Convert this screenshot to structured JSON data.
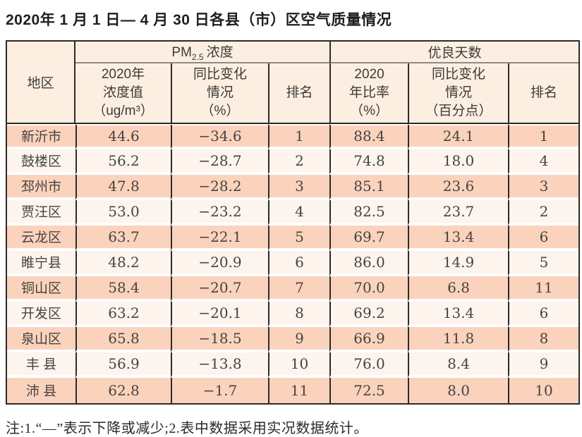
{
  "page": {
    "title": "2020年 1 月 1 日— 4 月 30 日各县（市）区空气质量情况",
    "note": "注:1.“—”表示下降或减少;2.表中数据采用实况数据统计。"
  },
  "colors": {
    "row_salmon": "#fbd3bd",
    "row_light": "#fdf4ee",
    "header_bg": "#fcefe2",
    "border_dark": "#2e2a28",
    "border_gray": "#8f8a86"
  },
  "chart_data": {
    "type": "table",
    "title": "2020年 1 月 1 日— 4 月 30 日各县（市）区空气质量情况",
    "column_groups": {
      "pm": {
        "prefix": "PM",
        "subscript": "2.5",
        "suffix": "浓度"
      },
      "days": "优良天数"
    },
    "columns": {
      "region": "地区",
      "pm_value": "2020年\n浓度值\n（ug/m³）",
      "pm_change": "同比变化\n情况\n（%）",
      "pm_rank": "排名",
      "days_rate": "2020\n年比率\n（%）",
      "days_change": "同比变化\n情况\n（百分点）",
      "days_rank": "排名"
    },
    "rows": [
      {
        "region": "新沂市",
        "pm_value": "44.6",
        "pm_change": "−34.6",
        "pm_rank": "1",
        "days_rate": "88.4",
        "days_change": "24.1",
        "days_rank": "1"
      },
      {
        "region": "鼓楼区",
        "pm_value": "56.2",
        "pm_change": "−28.7",
        "pm_rank": "2",
        "days_rate": "74.8",
        "days_change": "18.0",
        "days_rank": "4"
      },
      {
        "region": "邳州市",
        "pm_value": "47.8",
        "pm_change": "−28.2",
        "pm_rank": "3",
        "days_rate": "85.1",
        "days_change": "23.6",
        "days_rank": "3"
      },
      {
        "region": "贾汪区",
        "pm_value": "53.0",
        "pm_change": "−23.2",
        "pm_rank": "4",
        "days_rate": "82.5",
        "days_change": "23.7",
        "days_rank": "2"
      },
      {
        "region": "云龙区",
        "pm_value": "63.7",
        "pm_change": "−22.1",
        "pm_rank": "5",
        "days_rate": "69.7",
        "days_change": "13.4",
        "days_rank": "6"
      },
      {
        "region": "睢宁县",
        "pm_value": "48.2",
        "pm_change": "−20.9",
        "pm_rank": "6",
        "days_rate": "86.0",
        "days_change": "14.9",
        "days_rank": "5"
      },
      {
        "region": "铜山区",
        "pm_value": "58.4",
        "pm_change": "−20.7",
        "pm_rank": "7",
        "days_rate": "70.0",
        "days_change": "6.8",
        "days_rank": "11"
      },
      {
        "region": "开发区",
        "pm_value": "63.2",
        "pm_change": "−20.1",
        "pm_rank": "8",
        "days_rate": "69.2",
        "days_change": "13.4",
        "days_rank": "6"
      },
      {
        "region": "泉山区",
        "pm_value": "65.8",
        "pm_change": "−18.5",
        "pm_rank": "9",
        "days_rate": "66.9",
        "days_change": "11.8",
        "days_rank": "8"
      },
      {
        "region": "丰 县",
        "pm_value": "56.9",
        "pm_change": "−13.8",
        "pm_rank": "10",
        "days_rate": "76.0",
        "days_change": "8.4",
        "days_rank": "9"
      },
      {
        "region": "沛 县",
        "pm_value": "62.8",
        "pm_change": "−1.7",
        "pm_rank": "11",
        "days_rate": "72.5",
        "days_change": "8.0",
        "days_rank": "10"
      }
    ]
  }
}
